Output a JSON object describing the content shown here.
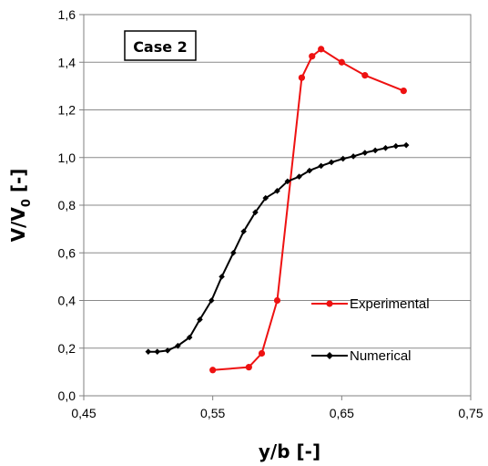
{
  "chart_data": {
    "type": "line",
    "annotation": "Case 2",
    "xlabel": "y/b [-]",
    "ylabel": {
      "main": "V/V",
      "sub": "0",
      "unit": " [-]"
    },
    "xlim": [
      0.45,
      0.75
    ],
    "ylim": [
      0.0,
      1.6
    ],
    "xticks": [
      "0,45",
      "0,55",
      "0,65",
      "0,75"
    ],
    "xtick_values": [
      0.45,
      0.55,
      0.65,
      0.75
    ],
    "yticks": [
      "0,0",
      "0,2",
      "0,4",
      "0,6",
      "0,8",
      "1,0",
      "1,2",
      "1,4",
      "1,6"
    ],
    "ytick_values": [
      0.0,
      0.2,
      0.4,
      0.6,
      0.8,
      1.0,
      1.2,
      1.4,
      1.6
    ],
    "grid": "horizontal",
    "legend_position": "right",
    "series": [
      {
        "name": "Experimental",
        "color": "#ee1111",
        "marker": "circle",
        "x": [
          0.55,
          0.578,
          0.588,
          0.6,
          0.619,
          0.627,
          0.634,
          0.65,
          0.668,
          0.698
        ],
        "y": [
          0.108,
          0.12,
          0.178,
          0.4,
          1.335,
          1.425,
          1.455,
          1.4,
          1.345,
          1.28
        ]
      },
      {
        "name": "Numerical",
        "color": "#000000",
        "marker": "diamond",
        "x": [
          0.5,
          0.507,
          0.515,
          0.523,
          0.532,
          0.54,
          0.549,
          0.557,
          0.566,
          0.574,
          0.583,
          0.591,
          0.6,
          0.608,
          0.617,
          0.625,
          0.634,
          0.642,
          0.651,
          0.659,
          0.668,
          0.676,
          0.684,
          0.692,
          0.7
        ],
        "y": [
          0.185,
          0.185,
          0.19,
          0.21,
          0.245,
          0.32,
          0.4,
          0.5,
          0.6,
          0.69,
          0.77,
          0.83,
          0.86,
          0.9,
          0.92,
          0.945,
          0.965,
          0.98,
          0.995,
          1.005,
          1.02,
          1.03,
          1.04,
          1.048,
          1.052
        ]
      }
    ]
  }
}
